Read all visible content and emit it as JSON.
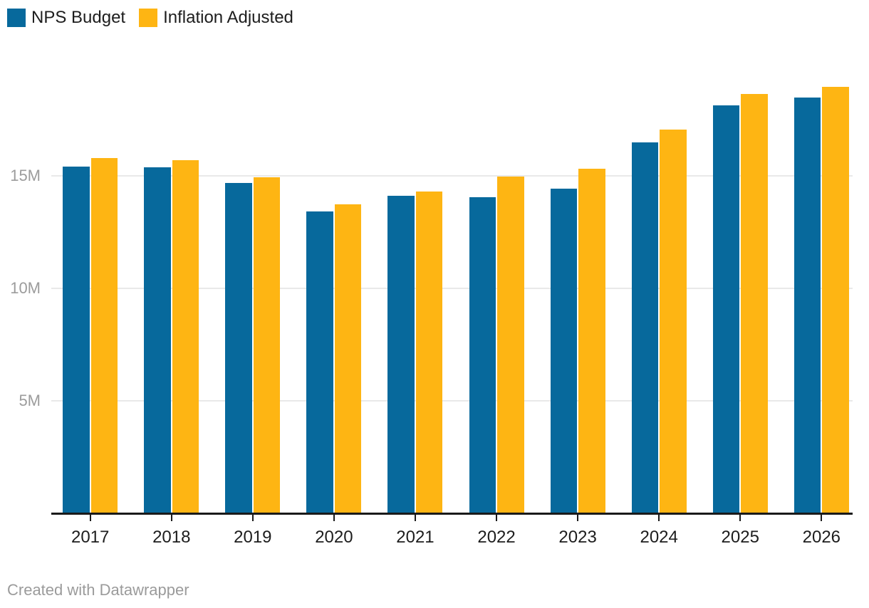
{
  "legend": {
    "items": [
      {
        "label": "NPS Budget",
        "color": "#07699c"
      },
      {
        "label": "Inflation Adjusted",
        "color": "#feb513"
      }
    ]
  },
  "footer": {
    "attribution": "Created with Datawrapper"
  },
  "colors": {
    "series_blue": "#07699c",
    "series_yellow": "#feb513",
    "axis": "#1a1a1a",
    "gridline": "#e9e9e9",
    "tick_label_gray": "#9c9c9c",
    "text_dark": "#1d1d1d"
  },
  "chart_data": {
    "type": "bar",
    "title": "",
    "categories": [
      "2017",
      "2018",
      "2019",
      "2020",
      "2021",
      "2022",
      "2023",
      "2024",
      "2025",
      "2026"
    ],
    "series": [
      {
        "name": "NPS Budget",
        "color": "#07699c",
        "values": [
          15.42,
          15.37,
          14.67,
          13.43,
          14.1,
          14.04,
          14.42,
          16.48,
          18.12,
          18.47
        ]
      },
      {
        "name": "Inflation Adjusted",
        "color": "#feb513",
        "values": [
          15.78,
          15.69,
          14.95,
          13.73,
          14.3,
          14.97,
          15.33,
          17.06,
          18.63,
          18.97
        ]
      }
    ],
    "xlabel": "",
    "ylabel": "",
    "value_unit": "M",
    "ylim": [
      0,
      20
    ],
    "yticks": [
      {
        "value": 5,
        "label": "5M"
      },
      {
        "value": 10,
        "label": "10M"
      },
      {
        "value": 15,
        "label": "15M"
      }
    ],
    "grid": "horizontal",
    "legend_position": "top-left"
  }
}
